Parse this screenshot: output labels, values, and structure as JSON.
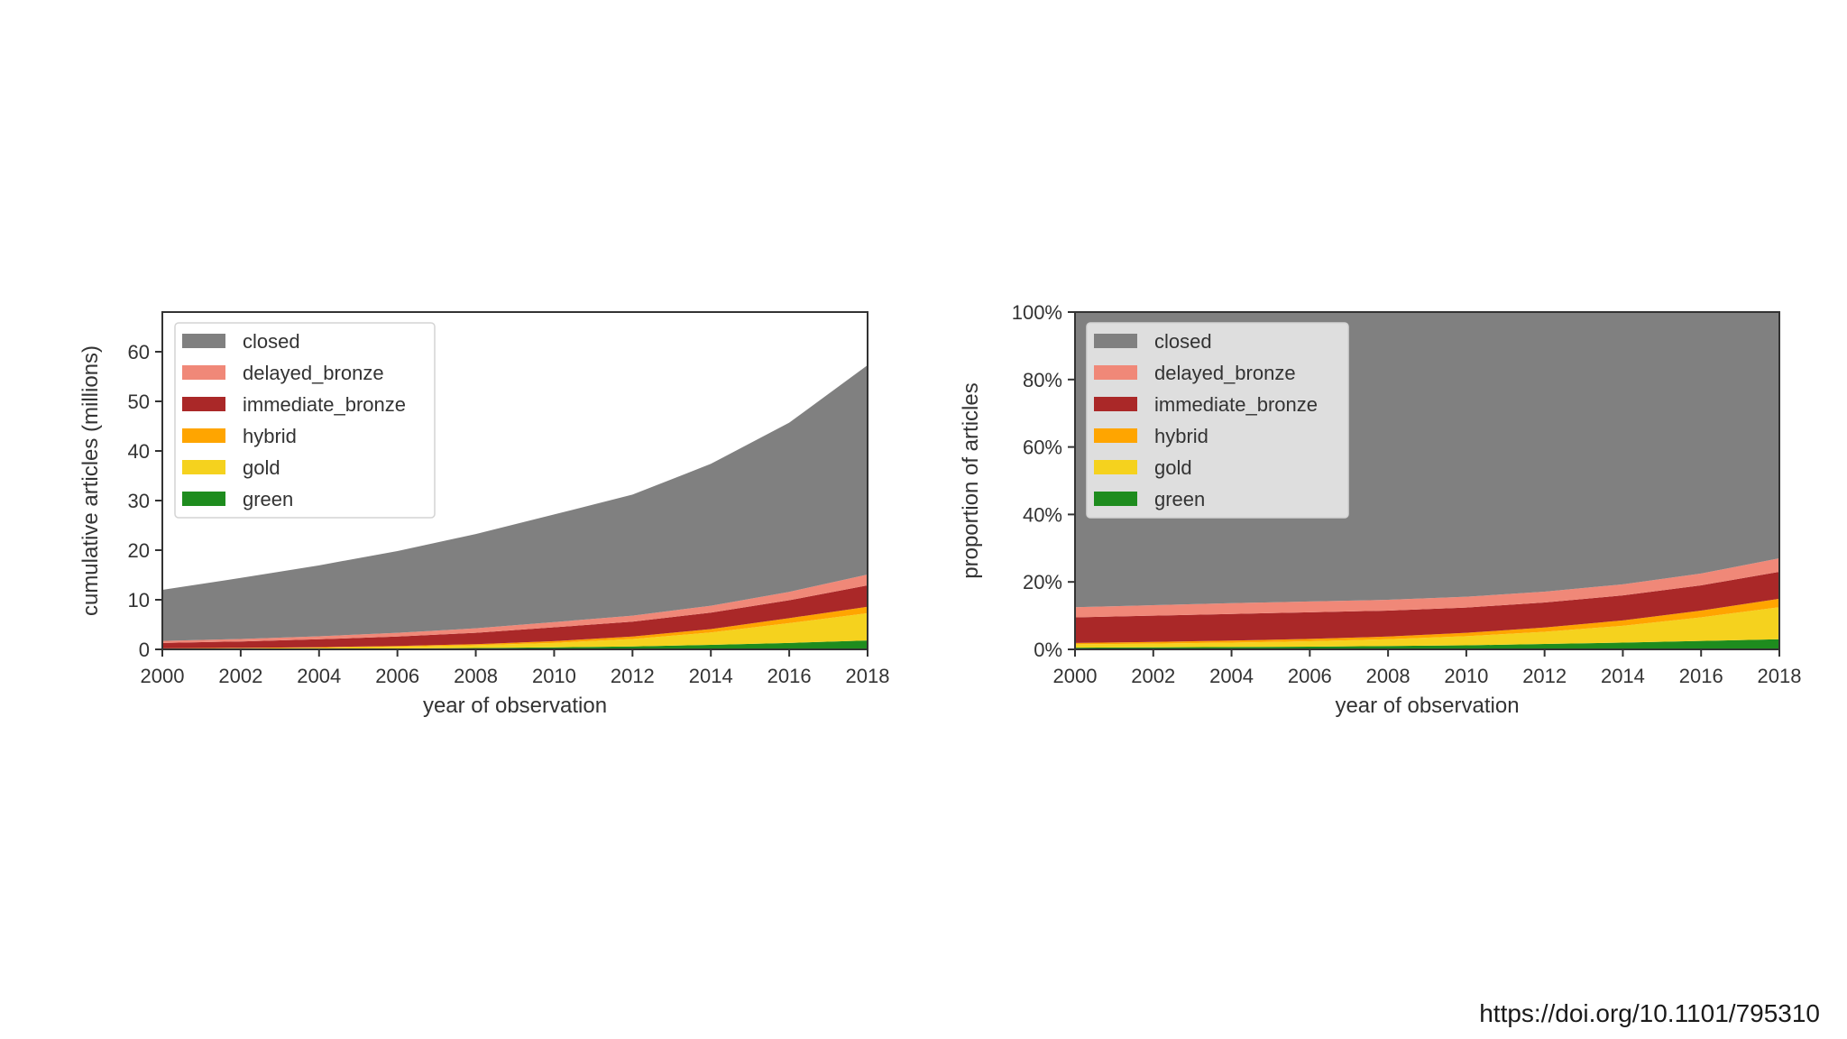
{
  "footer": {
    "url": "https://doi.org/10.1101/795310"
  },
  "legend_labels": [
    "closed",
    "delayed_bronze",
    "immediate_bronze",
    "hybrid",
    "gold",
    "green"
  ],
  "colors": {
    "closed": "#808080",
    "delayed_bronze": "#f08878",
    "immediate_bronze": "#aa2828",
    "hybrid": "#ffa500",
    "gold": "#f5d21e",
    "green": "#1e8c1e"
  },
  "chart_data": [
    {
      "type": "area",
      "stacked": true,
      "x": [
        2000,
        2002,
        2004,
        2006,
        2008,
        2010,
        2012,
        2014,
        2016,
        2018
      ],
      "xticks": [
        2000,
        2002,
        2004,
        2006,
        2008,
        2010,
        2012,
        2014,
        2016,
        2018
      ],
      "xlim": [
        2000,
        2018
      ],
      "ylim": [
        0,
        68
      ],
      "yticks": [
        0,
        10,
        20,
        30,
        40,
        50,
        60
      ],
      "ytick_labels": [
        "0",
        "10",
        "20",
        "30",
        "40",
        "50",
        "60"
      ],
      "xlabel": "year of observation",
      "ylabel": "cumulative articles (millions)",
      "legend_position": "upper-left",
      "series": [
        {
          "name": "green",
          "values": [
            0.05,
            0.08,
            0.12,
            0.18,
            0.28,
            0.4,
            0.6,
            0.9,
            1.3,
            1.8
          ]
        },
        {
          "name": "gold",
          "values": [
            0.1,
            0.15,
            0.22,
            0.35,
            0.55,
            0.9,
            1.5,
            2.5,
            4.0,
            5.5
          ]
        },
        {
          "name": "hybrid",
          "values": [
            0.05,
            0.07,
            0.1,
            0.15,
            0.22,
            0.35,
            0.5,
            0.7,
            1.0,
            1.3
          ]
        },
        {
          "name": "immediate_bronze",
          "values": [
            1.1,
            1.3,
            1.6,
            1.9,
            2.3,
            2.8,
            3.0,
            3.3,
            3.6,
            4.3
          ]
        },
        {
          "name": "delayed_bronze",
          "values": [
            0.4,
            0.5,
            0.6,
            0.75,
            0.9,
            1.05,
            1.2,
            1.4,
            1.7,
            2.2
          ]
        },
        {
          "name": "closed",
          "values": [
            10.3,
            12.3,
            14.3,
            16.5,
            19.0,
            21.7,
            24.4,
            28.6,
            34.1,
            42.2
          ]
        }
      ]
    },
    {
      "type": "area",
      "stacked": true,
      "x": [
        2000,
        2002,
        2004,
        2006,
        2008,
        2010,
        2012,
        2014,
        2016,
        2018
      ],
      "xticks": [
        2000,
        2002,
        2004,
        2006,
        2008,
        2010,
        2012,
        2014,
        2016,
        2018
      ],
      "xlim": [
        2000,
        2018
      ],
      "ylim": [
        0,
        100
      ],
      "yticks": [
        0,
        20,
        40,
        60,
        80,
        100
      ],
      "ytick_labels": [
        "0%",
        "20%",
        "40%",
        "60%",
        "80%",
        "100%"
      ],
      "xlabel": "year of observation",
      "ylabel": "proportion of articles",
      "legend_position": "upper-left",
      "series": [
        {
          "name": "green",
          "values": [
            0.5,
            0.6,
            0.7,
            0.8,
            1.0,
            1.2,
            1.6,
            2.0,
            2.5,
            3.0
          ]
        },
        {
          "name": "gold",
          "values": [
            1.0,
            1.1,
            1.3,
            1.6,
            2.0,
            2.7,
            3.6,
            5.0,
            7.0,
            9.5
          ]
        },
        {
          "name": "hybrid",
          "values": [
            0.4,
            0.5,
            0.6,
            0.7,
            0.8,
            1.0,
            1.3,
            1.6,
            2.0,
            2.5
          ]
        },
        {
          "name": "immediate_bronze",
          "values": [
            7.6,
            7.8,
            7.9,
            7.9,
            7.7,
            7.5,
            7.4,
            7.4,
            7.5,
            8.0
          ]
        },
        {
          "name": "delayed_bronze",
          "values": [
            3.0,
            3.1,
            3.2,
            3.2,
            3.2,
            3.2,
            3.2,
            3.3,
            3.5,
            4.0
          ]
        },
        {
          "name": "closed",
          "values": [
            87.5,
            86.9,
            86.3,
            85.8,
            85.3,
            84.4,
            82.9,
            80.7,
            77.5,
            73.0
          ]
        }
      ]
    }
  ]
}
